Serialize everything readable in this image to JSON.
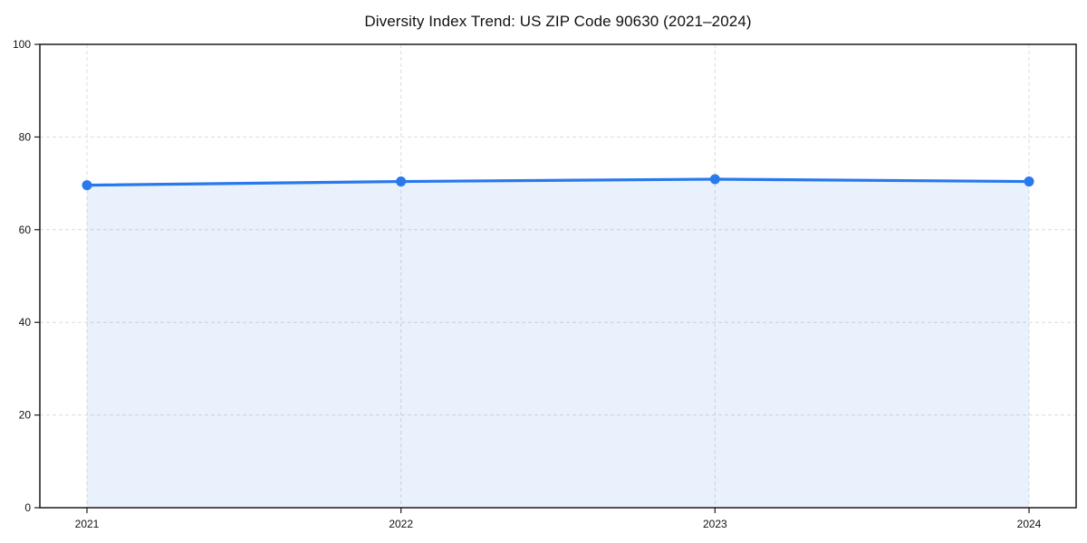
{
  "chart_data": {
    "type": "area",
    "title": "Diversity Index Trend: US ZIP Code 90630 (2021–2024)",
    "x": [
      2021,
      2022,
      2023,
      2024
    ],
    "xticks": [
      "2021",
      "2022",
      "2023",
      "2024"
    ],
    "yticks": [
      0,
      20,
      40,
      60,
      80,
      100
    ],
    "ylim": [
      0,
      100
    ],
    "series": [
      {
        "name": "Diversity Index",
        "values": [
          69.6,
          70.4,
          70.9,
          70.4
        ]
      }
    ],
    "xlabel": "",
    "ylabel": "",
    "grid": true,
    "grid_style": "dashed",
    "legend": false,
    "colors": {
      "line": "#2878ee",
      "marker": "#2878ee",
      "fill": "rgba(43,121,238,0.10)",
      "grid": "#dcdcdc",
      "spine": "#1a1a1a",
      "text": "#111111",
      "background": "#ffffff"
    }
  }
}
